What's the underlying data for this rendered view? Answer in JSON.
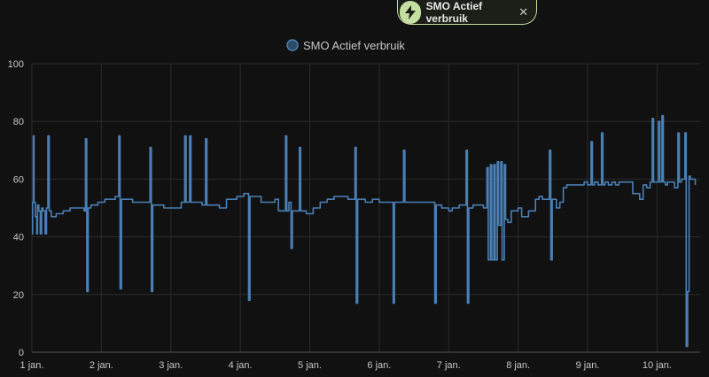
{
  "filter_chip": {
    "label": "SMO Actief verbruik",
    "icon": "lightning-bolt-icon",
    "close_icon": "close-icon",
    "close_glyph": "✕",
    "accent": "#c5dfa3"
  },
  "chart_data": {
    "type": "line",
    "series": [
      {
        "name": "SMO Actief verbruik",
        "color": "#4a7fb5",
        "points": [
          [
            0.0,
            41
          ],
          [
            0.01,
            52
          ],
          [
            0.02,
            75
          ],
          [
            0.03,
            52
          ],
          [
            0.05,
            47
          ],
          [
            0.07,
            41
          ],
          [
            0.08,
            51
          ],
          [
            0.1,
            49
          ],
          [
            0.12,
            41
          ],
          [
            0.14,
            50
          ],
          [
            0.16,
            49
          ],
          [
            0.19,
            41
          ],
          [
            0.21,
            50
          ],
          [
            0.23,
            75
          ],
          [
            0.25,
            49
          ],
          [
            0.28,
            47
          ],
          [
            0.35,
            48
          ],
          [
            0.45,
            49
          ],
          [
            0.55,
            50
          ],
          [
            0.65,
            50
          ],
          [
            0.75,
            49
          ],
          [
            0.77,
            74
          ],
          [
            0.79,
            21
          ],
          [
            0.81,
            50
          ],
          [
            0.85,
            51
          ],
          [
            0.95,
            52
          ],
          [
            1.05,
            53
          ],
          [
            1.15,
            53
          ],
          [
            1.2,
            54
          ],
          [
            1.25,
            75
          ],
          [
            1.27,
            22
          ],
          [
            1.29,
            53
          ],
          [
            1.35,
            53
          ],
          [
            1.45,
            52
          ],
          [
            1.55,
            52
          ],
          [
            1.6,
            52
          ],
          [
            1.7,
            71
          ],
          [
            1.72,
            21
          ],
          [
            1.74,
            51
          ],
          [
            1.8,
            51
          ],
          [
            1.9,
            50
          ],
          [
            2.0,
            50
          ],
          [
            2.1,
            50
          ],
          [
            2.15,
            52
          ],
          [
            2.2,
            75
          ],
          [
            2.22,
            52
          ],
          [
            2.27,
            75
          ],
          [
            2.29,
            52
          ],
          [
            2.35,
            52
          ],
          [
            2.45,
            51
          ],
          [
            2.5,
            74
          ],
          [
            2.52,
            51
          ],
          [
            2.6,
            51
          ],
          [
            2.7,
            50
          ],
          [
            2.8,
            53
          ],
          [
            2.9,
            53
          ],
          [
            2.95,
            54
          ],
          [
            3.0,
            54
          ],
          [
            3.05,
            55
          ],
          [
            3.12,
            18
          ],
          [
            3.14,
            54
          ],
          [
            3.2,
            54
          ],
          [
            3.3,
            52
          ],
          [
            3.4,
            52
          ],
          [
            3.5,
            53
          ],
          [
            3.55,
            49
          ],
          [
            3.6,
            49
          ],
          [
            3.65,
            75
          ],
          [
            3.67,
            49
          ],
          [
            3.7,
            52
          ],
          [
            3.73,
            36
          ],
          [
            3.75,
            49
          ],
          [
            3.8,
            49
          ],
          [
            3.85,
            71
          ],
          [
            3.87,
            49
          ],
          [
            3.95,
            48
          ],
          [
            4.05,
            50
          ],
          [
            4.15,
            52
          ],
          [
            4.25,
            53
          ],
          [
            4.35,
            54
          ],
          [
            4.45,
            54
          ],
          [
            4.55,
            53
          ],
          [
            4.65,
            71
          ],
          [
            4.67,
            17
          ],
          [
            4.69,
            53
          ],
          [
            4.8,
            52
          ],
          [
            4.9,
            53
          ],
          [
            5.0,
            52
          ],
          [
            5.1,
            52
          ],
          [
            5.2,
            17
          ],
          [
            5.22,
            52
          ],
          [
            5.3,
            52
          ],
          [
            5.35,
            70
          ],
          [
            5.37,
            52
          ],
          [
            5.45,
            52
          ],
          [
            5.55,
            52
          ],
          [
            5.65,
            52
          ],
          [
            5.75,
            52
          ],
          [
            5.8,
            17
          ],
          [
            5.82,
            51
          ],
          [
            5.9,
            50
          ],
          [
            6.0,
            49
          ],
          [
            6.05,
            50
          ],
          [
            6.15,
            51
          ],
          [
            6.25,
            70
          ],
          [
            6.27,
            17
          ],
          [
            6.29,
            50
          ],
          [
            6.35,
            51
          ],
          [
            6.45,
            51
          ],
          [
            6.5,
            50
          ],
          [
            6.55,
            64
          ],
          [
            6.57,
            32
          ],
          [
            6.6,
            65
          ],
          [
            6.62,
            32
          ],
          [
            6.65,
            65
          ],
          [
            6.67,
            32
          ],
          [
            6.7,
            66
          ],
          [
            6.72,
            44
          ],
          [
            6.75,
            66
          ],
          [
            6.77,
            32
          ],
          [
            6.8,
            65
          ],
          [
            6.82,
            46
          ],
          [
            6.85,
            45
          ],
          [
            6.9,
            49
          ],
          [
            6.95,
            49
          ],
          [
            7.0,
            50
          ],
          [
            7.05,
            47
          ],
          [
            7.1,
            47
          ],
          [
            7.15,
            49
          ],
          [
            7.2,
            49
          ],
          [
            7.25,
            53
          ],
          [
            7.3,
            54
          ],
          [
            7.35,
            53
          ],
          [
            7.4,
            53
          ],
          [
            7.45,
            70
          ],
          [
            7.47,
            32
          ],
          [
            7.49,
            53
          ],
          [
            7.55,
            50
          ],
          [
            7.6,
            52
          ],
          [
            7.65,
            57
          ],
          [
            7.7,
            58
          ],
          [
            7.8,
            58
          ],
          [
            7.85,
            58
          ],
          [
            7.9,
            58
          ],
          [
            7.95,
            59
          ],
          [
            8.0,
            58
          ],
          [
            8.05,
            73
          ],
          [
            8.07,
            58
          ],
          [
            8.1,
            59
          ],
          [
            8.15,
            58
          ],
          [
            8.2,
            76
          ],
          [
            8.22,
            58
          ],
          [
            8.25,
            59
          ],
          [
            8.3,
            58
          ],
          [
            8.35,
            59
          ],
          [
            8.4,
            58
          ],
          [
            8.45,
            59
          ],
          [
            8.5,
            59
          ],
          [
            8.55,
            59
          ],
          [
            8.6,
            59
          ],
          [
            8.65,
            55
          ],
          [
            8.7,
            55
          ],
          [
            8.75,
            53
          ],
          [
            8.8,
            58
          ],
          [
            8.85,
            57
          ],
          [
            8.9,
            59
          ],
          [
            8.93,
            81
          ],
          [
            8.95,
            59
          ],
          [
            9.0,
            59
          ],
          [
            9.02,
            80
          ],
          [
            9.04,
            59
          ],
          [
            9.07,
            82
          ],
          [
            9.09,
            59
          ],
          [
            9.12,
            58
          ],
          [
            9.15,
            59
          ],
          [
            9.2,
            59
          ],
          [
            9.25,
            57
          ],
          [
            9.3,
            76
          ],
          [
            9.32,
            59
          ],
          [
            9.35,
            60
          ],
          [
            9.4,
            76
          ],
          [
            9.42,
            2
          ],
          [
            9.44,
            21
          ],
          [
            9.46,
            61
          ],
          [
            9.48,
            60
          ],
          [
            9.5,
            60
          ],
          [
            9.55,
            58
          ]
        ]
      }
    ],
    "x_tick_labels": [
      "1 jan.",
      "2 jan.",
      "3 jan.",
      "4 jan.",
      "5 jan.",
      "6 jan.",
      "7 jan.",
      "8 jan.",
      "9 jan.",
      "10 jan."
    ],
    "y_tick_labels": [
      "0",
      "20",
      "40",
      "60",
      "80",
      "100"
    ],
    "x_range": [
      0,
      9.62
    ],
    "ylim": [
      0,
      100
    ],
    "y_step": 20,
    "grid": true,
    "legend_position": "top-center",
    "title": "",
    "xlabel": "",
    "ylabel": ""
  }
}
